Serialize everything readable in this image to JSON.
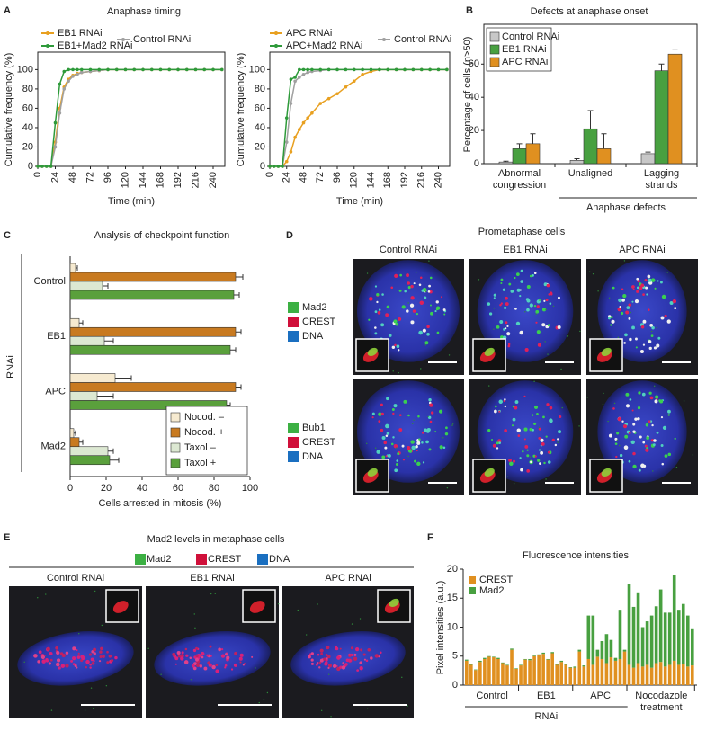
{
  "panel_A": {
    "letter": "A",
    "title": "Anaphase timing"
  },
  "panel_D": {
    "letter": "D",
    "title": "Prometaphase cells",
    "columns": [
      "Control RNAi",
      "EB1 RNAi",
      "APC RNAi"
    ],
    "rows": [
      {
        "legend": [
          {
            "label": "Mad2",
            "color": "#3cb043"
          },
          {
            "label": "CREST",
            "color": "#d0103a"
          },
          {
            "label": "DNA",
            "color": "#1a6fc0"
          }
        ]
      },
      {
        "legend": [
          {
            "label": "Bub1",
            "color": "#3cb043"
          },
          {
            "label": "CREST",
            "color": "#d0103a"
          },
          {
            "label": "DNA",
            "color": "#1a6fc0"
          }
        ]
      }
    ]
  },
  "panel_E": {
    "letter": "E",
    "title": "Mad2 levels in metaphase cells",
    "legend": [
      {
        "label": "Mad2",
        "color": "#3cb043"
      },
      {
        "label": "CREST",
        "color": "#d0103a"
      },
      {
        "label": "DNA",
        "color": "#1a6fc0"
      }
    ],
    "columns": [
      "Control RNAi",
      "EB1 RNAi",
      "APC RNAi"
    ]
  },
  "chart_data": [
    {
      "type": "line",
      "xlabel": "Time (min)",
      "ylabel": "Cumulative frequency (%)",
      "x": [
        0,
        6,
        12,
        18,
        24,
        30,
        36,
        42,
        48,
        54,
        60,
        72,
        84,
        96,
        108,
        120,
        132,
        144,
        156,
        168,
        180,
        192,
        204,
        216,
        228,
        240,
        252
      ],
      "xlim": [
        0,
        256
      ],
      "ylim": [
        0,
        118
      ],
      "xticks": [
        0,
        24,
        48,
        72,
        96,
        120,
        144,
        168,
        192,
        216,
        240
      ],
      "yticks": [
        0,
        20,
        40,
        60,
        80,
        100
      ],
      "series": [
        {
          "name": "EB1 RNAi",
          "color": "#e8a020",
          "values": [
            0,
            0,
            0,
            0,
            25,
            60,
            82,
            90,
            94,
            96,
            97,
            98,
            99,
            100,
            100,
            100,
            100,
            100,
            100,
            100,
            100,
            100,
            100,
            100,
            100,
            100,
            100
          ]
        },
        {
          "name": "Control RNAi",
          "color": "#a0a0a0",
          "values": [
            0,
            0,
            0,
            0,
            20,
            55,
            80,
            88,
            93,
            95,
            97,
            98,
            99,
            100,
            100,
            100,
            100,
            100,
            100,
            100,
            100,
            100,
            100,
            100,
            100,
            100,
            100
          ]
        },
        {
          "name": "EB1+Mad2 RNAi",
          "color": "#2e9a3a",
          "values": [
            0,
            0,
            0,
            0,
            45,
            85,
            98,
            100,
            100,
            100,
            100,
            100,
            100,
            100,
            100,
            100,
            100,
            100,
            100,
            100,
            100,
            100,
            100,
            100,
            100,
            100,
            100
          ]
        }
      ]
    },
    {
      "type": "line",
      "xlabel": "Time (min)",
      "ylabel": "Cumulative frequency (%)",
      "x": [
        0,
        6,
        12,
        18,
        24,
        30,
        36,
        42,
        48,
        54,
        60,
        72,
        84,
        96,
        108,
        120,
        132,
        144,
        156,
        168,
        180,
        192,
        204,
        216,
        228,
        240,
        252
      ],
      "xlim": [
        0,
        256
      ],
      "ylim": [
        0,
        118
      ],
      "xticks": [
        0,
        24,
        48,
        72,
        96,
        120,
        144,
        168,
        192,
        216,
        240
      ],
      "yticks": [
        0,
        20,
        40,
        60,
        80,
        100
      ],
      "series": [
        {
          "name": "APC RNAi",
          "color": "#e8a020",
          "values": [
            0,
            0,
            0,
            0,
            5,
            15,
            30,
            38,
            45,
            50,
            55,
            65,
            70,
            75,
            82,
            88,
            95,
            98,
            100,
            100,
            100,
            100,
            100,
            100,
            100,
            100,
            100
          ]
        },
        {
          "name": "Control RNAi",
          "color": "#a0a0a0",
          "values": [
            0,
            0,
            0,
            0,
            25,
            65,
            88,
            92,
            95,
            97,
            98,
            99,
            100,
            100,
            100,
            100,
            100,
            100,
            100,
            100,
            100,
            100,
            100,
            100,
            100,
            100,
            100
          ]
        },
        {
          "name": "APC+Mad2 RNAi",
          "color": "#2e9a3a",
          "values": [
            0,
            0,
            0,
            0,
            50,
            90,
            92,
            100,
            100,
            100,
            100,
            100,
            100,
            100,
            100,
            100,
            100,
            100,
            100,
            100,
            100,
            100,
            100,
            100,
            100,
            100,
            100
          ]
        }
      ]
    },
    {
      "type": "bar",
      "letter": "B",
      "title": "Defects at anaphase onset",
      "ylabel": "Percentage of cells (n>50)",
      "categories": [
        "Abnormal congression",
        "Unaligned",
        "Lagging strands"
      ],
      "group_caption": "Anaphase defects",
      "ylim": [
        0,
        84
      ],
      "yticks": [
        0,
        20,
        40,
        60
      ],
      "series": [
        {
          "name": "Control RNAi",
          "color": "#c8c8c8",
          "values": [
            1,
            2,
            6
          ],
          "errors": [
            0.5,
            1,
            1
          ]
        },
        {
          "name": "EB1 RNAi",
          "color": "#48a040",
          "values": [
            9,
            21,
            56
          ],
          "errors": [
            3,
            11,
            4
          ]
        },
        {
          "name": "APC RNAi",
          "color": "#e09020",
          "values": [
            12,
            9,
            66
          ],
          "errors": [
            6,
            9,
            3
          ]
        }
      ]
    },
    {
      "type": "barh",
      "letter": "C",
      "title": "Analysis of checkpoint function",
      "xlabel": "Cells arrested in mitosis (%)",
      "group_label": "RNAi",
      "categories": [
        "Control",
        "EB1",
        "APC",
        "Mad2"
      ],
      "xlim": [
        0,
        100
      ],
      "xticks": [
        0,
        20,
        40,
        60,
        80,
        100
      ],
      "series": [
        {
          "name": "Nocod. –",
          "color": "#f6ead0",
          "values": [
            3,
            5,
            25,
            2
          ],
          "errors": [
            1,
            2,
            9,
            1
          ]
        },
        {
          "name": "Nocod. +",
          "color": "#c87a20",
          "values": [
            92,
            92,
            92,
            5
          ],
          "errors": [
            4,
            3,
            3,
            2
          ]
        },
        {
          "name": "Taxol –",
          "color": "#dce8d2",
          "values": [
            18,
            19,
            15,
            21
          ],
          "errors": [
            3,
            5,
            9,
            3
          ]
        },
        {
          "name": "Taxol +",
          "color": "#5aa03c",
          "values": [
            91,
            89,
            87,
            22
          ],
          "errors": [
            3,
            3,
            2,
            5
          ]
        }
      ]
    },
    {
      "type": "stacked_bar",
      "letter": "F",
      "title": "Fluorescence intensities",
      "ylabel": "Pixel intensities (a.u.)",
      "group_caption": "RNAi",
      "ylim": [
        0,
        20
      ],
      "yticks": [
        0,
        5,
        10,
        15,
        20
      ],
      "series": [
        {
          "name": "CREST",
          "color": "#e09020"
        },
        {
          "name": "Mad2",
          "color": "#48a040"
        }
      ],
      "groups": [
        {
          "label": "Control",
          "values": [
            [
              4.2,
              0.2
            ],
            [
              3.5,
              0.1
            ],
            [
              2.6,
              0.1
            ],
            [
              4.0,
              0.2
            ],
            [
              4.5,
              0.2
            ],
            [
              4.9,
              0.1
            ],
            [
              4.8,
              0.1
            ],
            [
              4.5,
              0.2
            ],
            [
              3.8,
              0.1
            ],
            [
              3.4,
              0.1
            ],
            [
              6.1,
              0.2
            ],
            [
              2.8,
              0.1
            ]
          ]
        },
        {
          "label": "EB1",
          "values": [
            [
              3.4,
              0.1
            ],
            [
              4.4,
              0.1
            ],
            [
              4.3,
              0.2
            ],
            [
              5.0,
              0.1
            ],
            [
              5.2,
              0.1
            ],
            [
              5.4,
              0.2
            ],
            [
              4.4,
              0.1
            ],
            [
              5.5,
              0.2
            ],
            [
              3.5,
              0.1
            ],
            [
              4.0,
              0.2
            ],
            [
              3.5,
              0.1
            ],
            [
              3.0,
              0.1
            ]
          ]
        },
        {
          "label": "APC",
          "values": [
            [
              3.0,
              0.2
            ],
            [
              5.8,
              0.3
            ],
            [
              3.2,
              0.2
            ],
            [
              4.5,
              7.5
            ],
            [
              3.5,
              8.5
            ],
            [
              4.9,
              1.2
            ],
            [
              4.5,
              3.1
            ],
            [
              3.8,
              5.0
            ],
            [
              4.8,
              3.0
            ],
            [
              4.2,
              0.5
            ],
            [
              4.5,
              8.5
            ],
            [
              5.8,
              0.3
            ]
          ]
        },
        {
          "label": "Nocodazole treatment",
          "values": [
            [
              3.5,
              14.0
            ],
            [
              3.0,
              10.5
            ],
            [
              3.8,
              12.2
            ],
            [
              3.2,
              6.8
            ],
            [
              3.5,
              7.5
            ],
            [
              3.0,
              9.0
            ],
            [
              3.8,
              9.8
            ],
            [
              4.0,
              12.5
            ],
            [
              3.2,
              9.3
            ],
            [
              3.5,
              9.0
            ],
            [
              4.2,
              14.8
            ],
            [
              3.5,
              9.5
            ],
            [
              3.6,
              10.4
            ],
            [
              3.2,
              8.8
            ],
            [
              3.4,
              6.4
            ]
          ]
        }
      ]
    }
  ]
}
